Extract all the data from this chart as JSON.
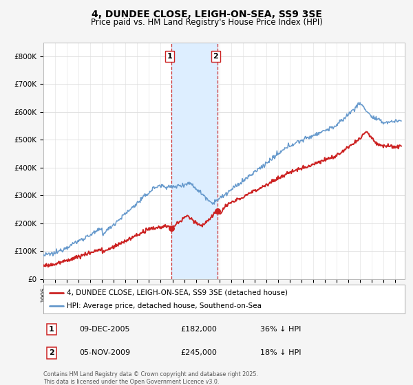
{
  "title": "4, DUNDEE CLOSE, LEIGH-ON-SEA, SS9 3SE",
  "subtitle": "Price paid vs. HM Land Registry's House Price Index (HPI)",
  "ylim": [
    0,
    850000
  ],
  "yticks": [
    0,
    100000,
    200000,
    300000,
    400000,
    500000,
    600000,
    700000,
    800000
  ],
  "ytick_labels": [
    "£0",
    "£100K",
    "£200K",
    "£300K",
    "£400K",
    "£500K",
    "£600K",
    "£700K",
    "£800K"
  ],
  "xlim_start": 1995.0,
  "xlim_end": 2025.8,
  "hpi_color": "#6699cc",
  "price_color": "#cc2222",
  "vline1_x": 2005.92,
  "vline2_x": 2009.84,
  "sale1_price": 182000,
  "sale2_price": 245000,
  "legend_label_price": "4, DUNDEE CLOSE, LEIGH-ON-SEA, SS9 3SE (detached house)",
  "legend_label_hpi": "HPI: Average price, detached house, Southend-on-Sea",
  "table_rows": [
    {
      "num": "1",
      "date": "09-DEC-2005",
      "price": "£182,000",
      "note": "36% ↓ HPI"
    },
    {
      "num": "2",
      "date": "05-NOV-2009",
      "price": "£245,000",
      "note": "18% ↓ HPI"
    }
  ],
  "footnote": "Contains HM Land Registry data © Crown copyright and database right 2025.\nThis data is licensed under the Open Government Licence v3.0.",
  "bg_color": "#f5f5f5",
  "plot_bg_color": "#ffffff",
  "highlight_color": "#ddeeff",
  "vline_color": "#cc3333",
  "ann_box_color": "#cc2222",
  "grid_color": "#dddddd"
}
